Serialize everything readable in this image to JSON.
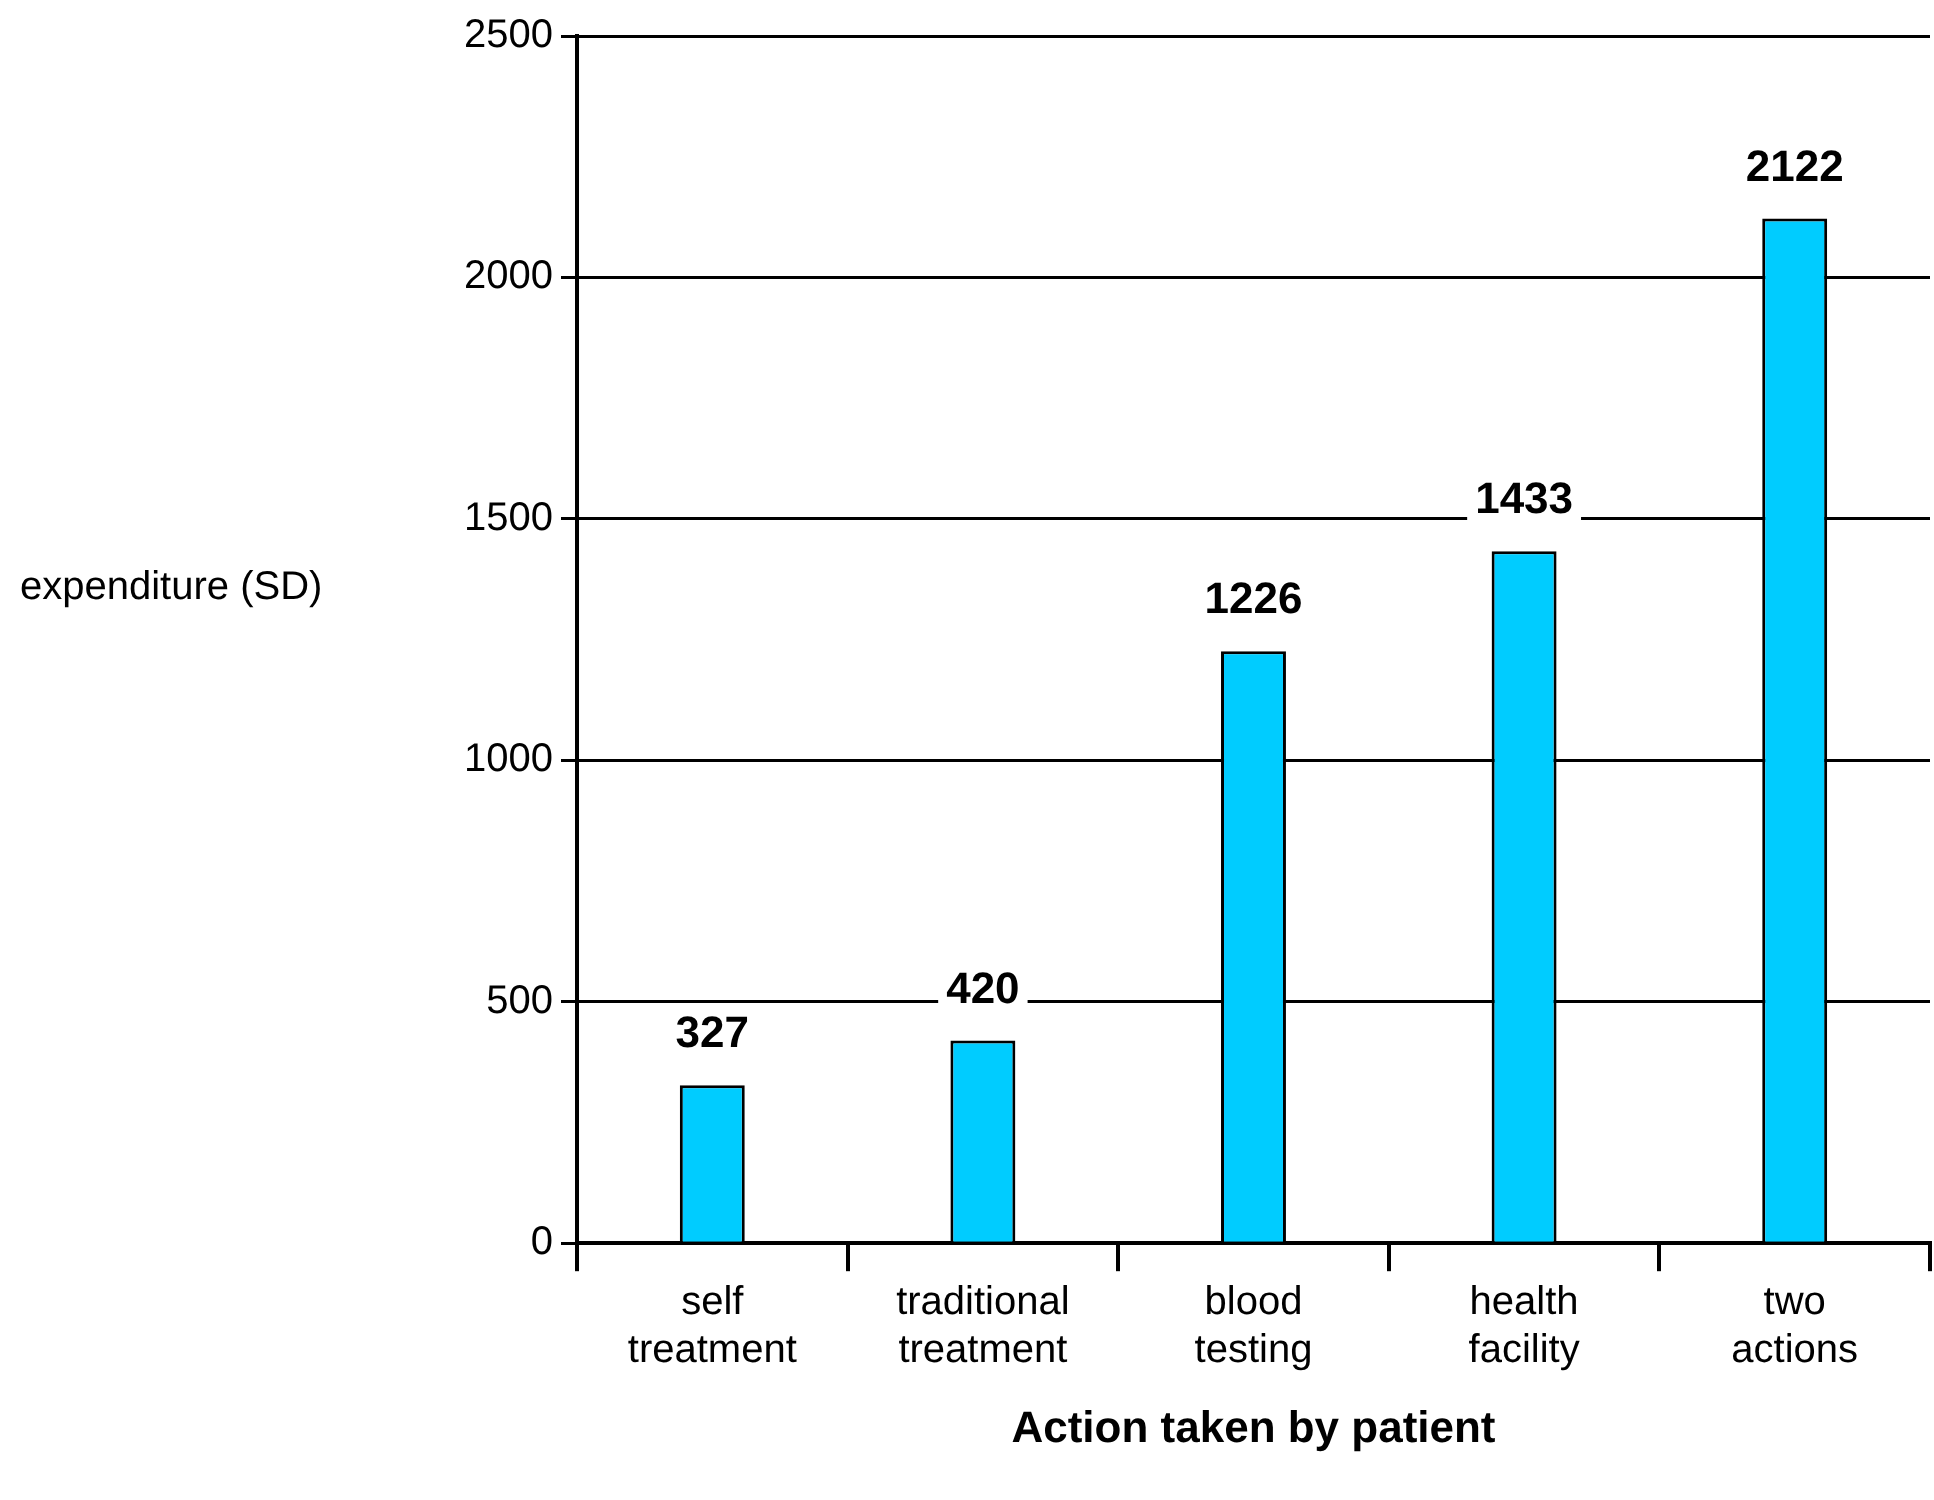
{
  "chart_data": {
    "type": "bar",
    "xlabel": "Action taken by patient",
    "ylabel": "expenditure (SD)",
    "categories": [
      "self treatment",
      "traditional treatment",
      "blood testing",
      "health facility",
      "two actions"
    ],
    "values": [
      327,
      420,
      1226,
      1433,
      2122
    ],
    "color": "#00ccff",
    "ylim": [
      0,
      2500
    ],
    "yticks": [
      0,
      500,
      1000,
      1500,
      2000,
      2500
    ],
    "grid": "y",
    "data_labels": true,
    "legend": false
  }
}
